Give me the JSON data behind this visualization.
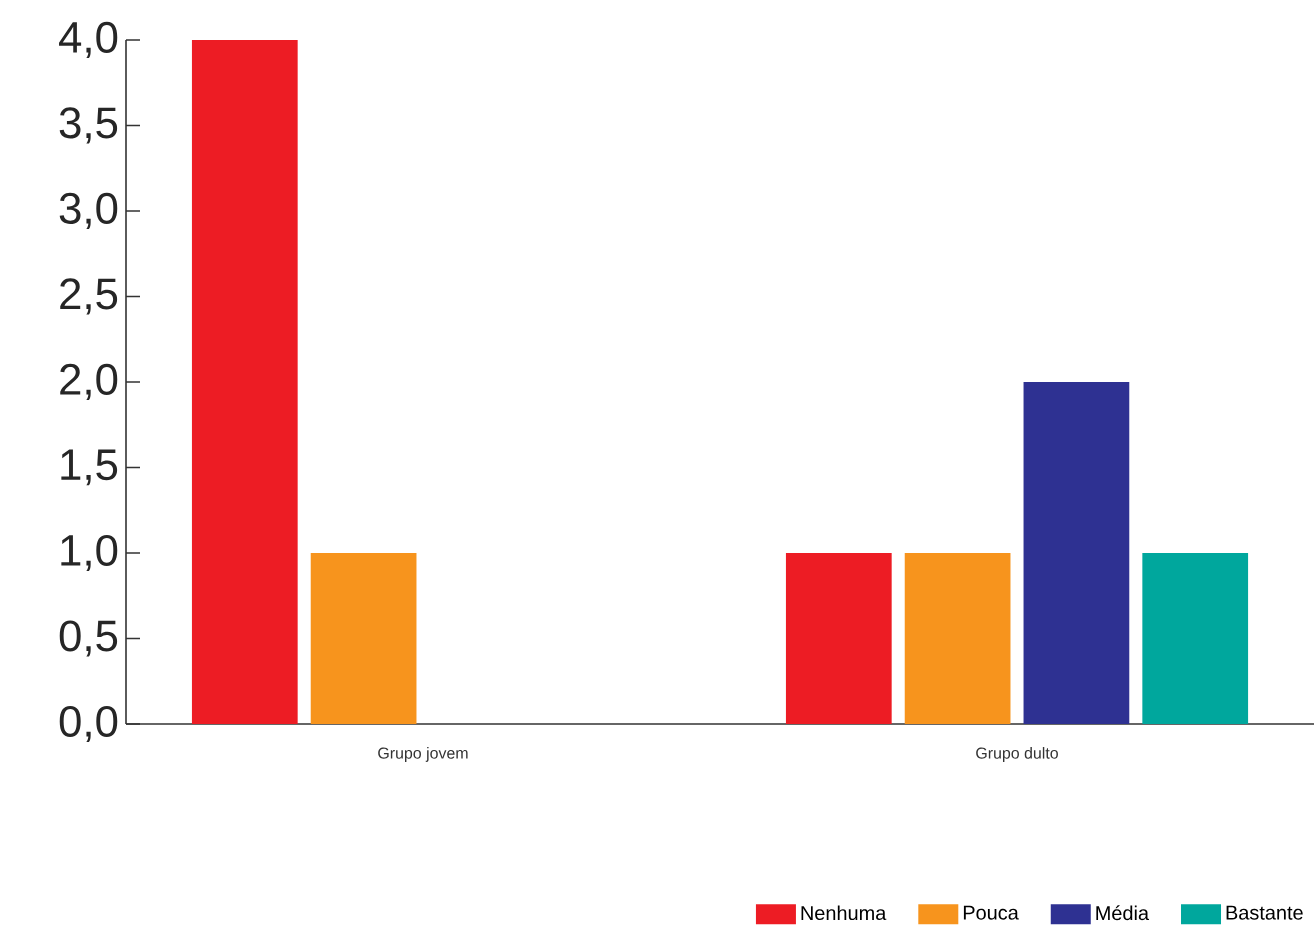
{
  "chart_data": {
    "type": "bar",
    "categories": [
      "Grupo jovem",
      "Grupo dulto"
    ],
    "series": [
      {
        "name": "Nenhuma",
        "color": "#ed1c24",
        "values": [
          4,
          1
        ]
      },
      {
        "name": "Pouca",
        "color": "#f7941d",
        "values": [
          1,
          1
        ]
      },
      {
        "name": "Média",
        "color": "#2e3192",
        "values": [
          0,
          2
        ]
      },
      {
        "name": "Bastante",
        "color": "#00a79d",
        "values": [
          0,
          1
        ]
      }
    ],
    "ylim": [
      0,
      4
    ],
    "yticks": [
      {
        "value": 0,
        "label": "0,0"
      },
      {
        "value": 0.5,
        "label": "0,5"
      },
      {
        "value": 1,
        "label": "1,0"
      },
      {
        "value": 1.5,
        "label": "1,5"
      },
      {
        "value": 2,
        "label": "2,0"
      },
      {
        "value": 2.5,
        "label": "2,5"
      },
      {
        "value": 3,
        "label": "3,0"
      },
      {
        "value": 3.5,
        "label": "3,5"
      },
      {
        "value": 4,
        "label": "4,0"
      }
    ],
    "grid": false,
    "legend": "bottom right"
  }
}
